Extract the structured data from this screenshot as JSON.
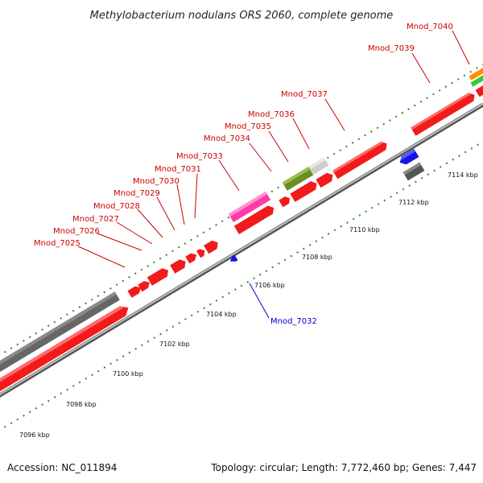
{
  "title": "Methylobacterium nodulans ORS 2060, complete genome",
  "footer": {
    "accession": "Accession: NC_011894",
    "summary": "Topology: circular; Length: 7,772,460 bp; Genes: 7,447"
  },
  "colors": {
    "background": "#ffffff",
    "forward_gene": "#f11b1b",
    "reverse_gene": "#f11b1b",
    "hypothetical": "#666666",
    "magenta_feature": "#ff3aa6",
    "olive_feature": "#6b8e23",
    "light_grey_feature": "#cfcfcf",
    "blue_feature": "#1414e6",
    "orange_feature": "#ff8c00",
    "green_feature": "#33cc33",
    "ticks": "#2e8b2e",
    "backbone": "#7a7a7a",
    "label_red": "#cc0000",
    "label_blue": "#0000cc"
  },
  "scale_ticks": [
    "7096 kbp",
    "7098 kbp",
    "7100 kbp",
    "7102 kbp",
    "7104 kbp",
    "7106 kbp",
    "7108 kbp",
    "7110 kbp",
    "7112 kbp",
    "7114 kbp"
  ],
  "gene_labels": [
    {
      "text": "Mnod_7025",
      "color": "red"
    },
    {
      "text": "Mnod_7026",
      "color": "red"
    },
    {
      "text": "Mnod_7027",
      "color": "red"
    },
    {
      "text": "Mnod_7028",
      "color": "red"
    },
    {
      "text": "Mnod_7029",
      "color": "red"
    },
    {
      "text": "Mnod_7030",
      "color": "red"
    },
    {
      "text": "Mnod_7031",
      "color": "red"
    },
    {
      "text": "Mnod_7033",
      "color": "red"
    },
    {
      "text": "Mnod_7034",
      "color": "red"
    },
    {
      "text": "Mnod_7035",
      "color": "red"
    },
    {
      "text": "Mnod_7036",
      "color": "red"
    },
    {
      "text": "Mnod_7037",
      "color": "red"
    },
    {
      "text": "Mnod_7039",
      "color": "red"
    },
    {
      "text": "Mnod_7040",
      "color": "red"
    },
    {
      "text": "Mnod_7032",
      "color": "blue"
    }
  ]
}
